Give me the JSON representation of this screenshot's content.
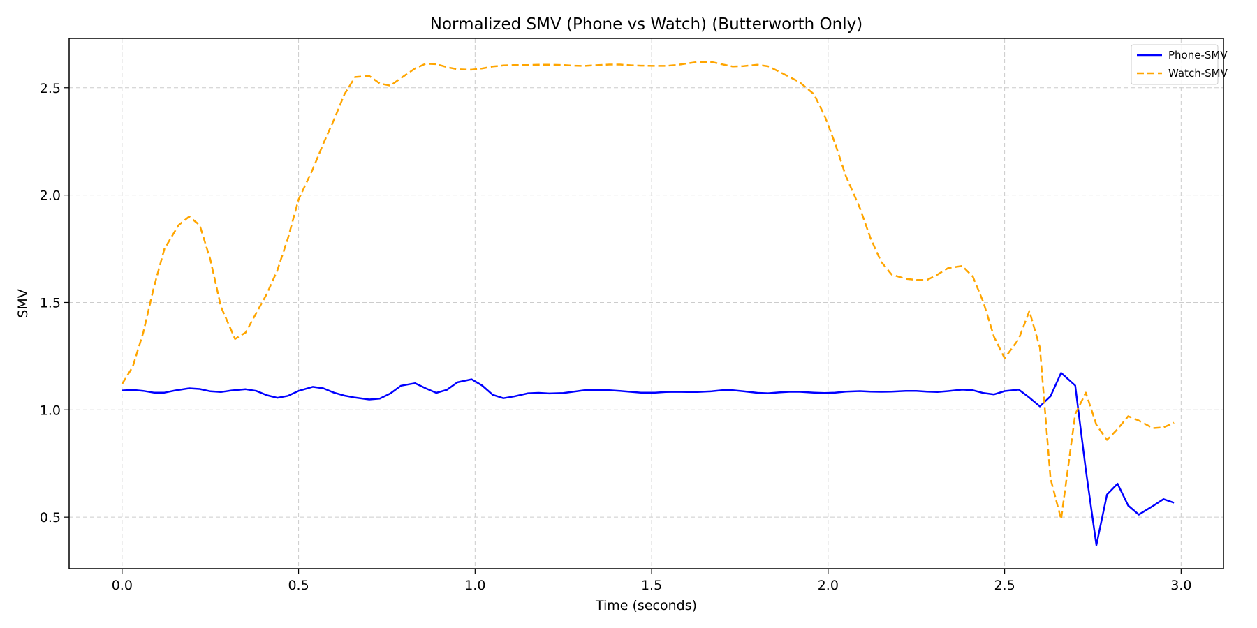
{
  "chart_data": {
    "type": "line",
    "title": "Normalized SMV (Phone vs Watch) (Butterworth Only)",
    "xlabel": "Time (seconds)",
    "ylabel": "SMV",
    "xlim": [
      -0.15,
      3.12
    ],
    "ylim": [
      0.26,
      2.73
    ],
    "xticks": [
      0.0,
      0.5,
      1.0,
      1.5,
      2.0,
      2.5,
      3.0
    ],
    "xtick_labels": [
      "0.0",
      "0.5",
      "1.0",
      "1.5",
      "2.0",
      "2.5",
      "3.0"
    ],
    "yticks": [
      0.5,
      1.0,
      1.5,
      2.0,
      2.5
    ],
    "ytick_labels": [
      "0.5",
      "1.0",
      "1.5",
      "2.0",
      "2.5"
    ],
    "grid": true,
    "legend_position": "top-right",
    "series": [
      {
        "name": "Phone-SMV",
        "color": "#0000ff",
        "style": "solid",
        "points": [
          [
            0.0,
            1.09
          ],
          [
            0.03,
            1.093
          ],
          [
            0.06,
            1.088
          ],
          [
            0.09,
            1.08
          ],
          [
            0.12,
            1.08
          ],
          [
            0.15,
            1.09
          ],
          [
            0.19,
            1.1
          ],
          [
            0.22,
            1.097
          ],
          [
            0.25,
            1.086
          ],
          [
            0.28,
            1.083
          ],
          [
            0.31,
            1.09
          ],
          [
            0.35,
            1.096
          ],
          [
            0.38,
            1.088
          ],
          [
            0.41,
            1.068
          ],
          [
            0.44,
            1.056
          ],
          [
            0.47,
            1.065
          ],
          [
            0.5,
            1.088
          ],
          [
            0.54,
            1.107
          ],
          [
            0.57,
            1.1
          ],
          [
            0.6,
            1.08
          ],
          [
            0.63,
            1.066
          ],
          [
            0.66,
            1.057
          ],
          [
            0.7,
            1.048
          ],
          [
            0.73,
            1.052
          ],
          [
            0.76,
            1.076
          ],
          [
            0.79,
            1.112
          ],
          [
            0.83,
            1.124
          ],
          [
            0.86,
            1.1
          ],
          [
            0.89,
            1.079
          ],
          [
            0.92,
            1.093
          ],
          [
            0.95,
            1.128
          ],
          [
            0.99,
            1.142
          ],
          [
            1.02,
            1.113
          ],
          [
            1.05,
            1.07
          ],
          [
            1.08,
            1.054
          ],
          [
            1.11,
            1.062
          ],
          [
            1.15,
            1.077
          ],
          [
            1.18,
            1.079
          ],
          [
            1.21,
            1.076
          ],
          [
            1.25,
            1.078
          ],
          [
            1.28,
            1.085
          ],
          [
            1.31,
            1.091
          ],
          [
            1.34,
            1.092
          ],
          [
            1.38,
            1.091
          ],
          [
            1.41,
            1.088
          ],
          [
            1.44,
            1.084
          ],
          [
            1.47,
            1.08
          ],
          [
            1.51,
            1.08
          ],
          [
            1.54,
            1.083
          ],
          [
            1.57,
            1.084
          ],
          [
            1.6,
            1.083
          ],
          [
            1.63,
            1.083
          ],
          [
            1.67,
            1.086
          ],
          [
            1.7,
            1.091
          ],
          [
            1.73,
            1.091
          ],
          [
            1.76,
            1.086
          ],
          [
            1.8,
            1.079
          ],
          [
            1.83,
            1.077
          ],
          [
            1.86,
            1.081
          ],
          [
            1.89,
            1.084
          ],
          [
            1.92,
            1.084
          ],
          [
            1.96,
            1.08
          ],
          [
            1.99,
            1.078
          ],
          [
            2.02,
            1.08
          ],
          [
            2.05,
            1.085
          ],
          [
            2.09,
            1.087
          ],
          [
            2.12,
            1.085
          ],
          [
            2.15,
            1.084
          ],
          [
            2.18,
            1.085
          ],
          [
            2.22,
            1.088
          ],
          [
            2.25,
            1.088
          ],
          [
            2.28,
            1.085
          ],
          [
            2.31,
            1.083
          ],
          [
            2.34,
            1.087
          ],
          [
            2.38,
            1.094
          ],
          [
            2.41,
            1.091
          ],
          [
            2.44,
            1.078
          ],
          [
            2.47,
            1.072
          ],
          [
            2.5,
            1.087
          ],
          [
            2.54,
            1.094
          ],
          [
            2.57,
            1.057
          ],
          [
            2.6,
            1.016
          ],
          [
            2.63,
            1.063
          ],
          [
            2.66,
            1.172
          ],
          [
            2.7,
            1.113
          ],
          [
            2.73,
            0.72
          ],
          [
            2.76,
            0.37
          ],
          [
            2.79,
            0.605
          ],
          [
            2.82,
            0.656
          ],
          [
            2.85,
            0.554
          ],
          [
            2.88,
            0.512
          ],
          [
            2.92,
            0.552
          ],
          [
            2.95,
            0.584
          ],
          [
            2.98,
            0.567
          ]
        ]
      },
      {
        "name": "Watch-SMV",
        "color": "#ffa500",
        "style": "dashed",
        "points": [
          [
            0.0,
            1.12
          ],
          [
            0.03,
            1.2
          ],
          [
            0.06,
            1.36
          ],
          [
            0.09,
            1.57
          ],
          [
            0.12,
            1.75
          ],
          [
            0.16,
            1.86
          ],
          [
            0.19,
            1.9
          ],
          [
            0.22,
            1.86
          ],
          [
            0.25,
            1.7
          ],
          [
            0.28,
            1.48
          ],
          [
            0.32,
            1.33
          ],
          [
            0.35,
            1.36
          ],
          [
            0.38,
            1.45
          ],
          [
            0.41,
            1.54
          ],
          [
            0.44,
            1.65
          ],
          [
            0.47,
            1.8
          ],
          [
            0.5,
            1.98
          ],
          [
            0.54,
            2.12
          ],
          [
            0.57,
            2.24
          ],
          [
            0.6,
            2.35
          ],
          [
            0.63,
            2.47
          ],
          [
            0.66,
            2.55
          ],
          [
            0.7,
            2.555
          ],
          [
            0.73,
            2.52
          ],
          [
            0.76,
            2.51
          ],
          [
            0.79,
            2.545
          ],
          [
            0.83,
            2.59
          ],
          [
            0.86,
            2.612
          ],
          [
            0.89,
            2.61
          ],
          [
            0.92,
            2.596
          ],
          [
            0.95,
            2.586
          ],
          [
            0.99,
            2.584
          ],
          [
            1.02,
            2.59
          ],
          [
            1.05,
            2.599
          ],
          [
            1.08,
            2.604
          ],
          [
            1.11,
            2.606
          ],
          [
            1.15,
            2.606
          ],
          [
            1.18,
            2.607
          ],
          [
            1.21,
            2.607
          ],
          [
            1.25,
            2.606
          ],
          [
            1.28,
            2.603
          ],
          [
            1.31,
            2.602
          ],
          [
            1.34,
            2.605
          ],
          [
            1.38,
            2.608
          ],
          [
            1.41,
            2.608
          ],
          [
            1.44,
            2.605
          ],
          [
            1.47,
            2.603
          ],
          [
            1.51,
            2.602
          ],
          [
            1.54,
            2.602
          ],
          [
            1.57,
            2.606
          ],
          [
            1.6,
            2.613
          ],
          [
            1.63,
            2.62
          ],
          [
            1.67,
            2.62
          ],
          [
            1.7,
            2.609
          ],
          [
            1.73,
            2.599
          ],
          [
            1.76,
            2.601
          ],
          [
            1.8,
            2.607
          ],
          [
            1.83,
            2.6
          ],
          [
            1.86,
            2.576
          ],
          [
            1.89,
            2.551
          ],
          [
            1.92,
            2.525
          ],
          [
            1.96,
            2.47
          ],
          [
            1.99,
            2.37
          ],
          [
            2.02,
            2.24
          ],
          [
            2.05,
            2.09
          ],
          [
            2.09,
            1.94
          ],
          [
            2.12,
            1.8
          ],
          [
            2.15,
            1.69
          ],
          [
            2.18,
            1.63
          ],
          [
            2.22,
            1.61
          ],
          [
            2.25,
            1.605
          ],
          [
            2.28,
            1.605
          ],
          [
            2.31,
            1.63
          ],
          [
            2.34,
            1.66
          ],
          [
            2.38,
            1.67
          ],
          [
            2.41,
            1.62
          ],
          [
            2.44,
            1.5
          ],
          [
            2.47,
            1.34
          ],
          [
            2.5,
            1.24
          ],
          [
            2.54,
            1.33
          ],
          [
            2.57,
            1.46
          ],
          [
            2.6,
            1.29
          ],
          [
            2.63,
            0.68
          ],
          [
            2.66,
            0.49
          ],
          [
            2.7,
            0.98
          ],
          [
            2.73,
            1.08
          ],
          [
            2.76,
            0.93
          ],
          [
            2.79,
            0.86
          ],
          [
            2.82,
            0.91
          ],
          [
            2.85,
            0.97
          ],
          [
            2.88,
            0.95
          ],
          [
            2.92,
            0.915
          ],
          [
            2.95,
            0.918
          ],
          [
            2.98,
            0.94
          ]
        ]
      }
    ]
  }
}
